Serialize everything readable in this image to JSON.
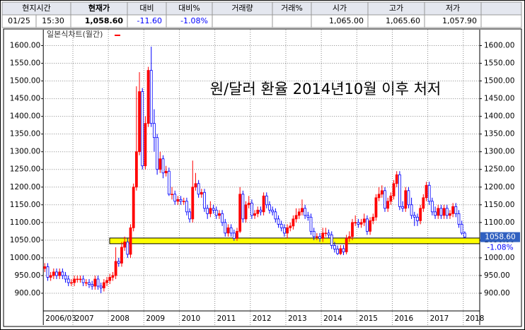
{
  "header": {
    "labels": [
      "현지시간",
      "현재가",
      "대비",
      "대비%",
      "거래량",
      "거래%",
      "시가",
      "고가",
      "저가"
    ],
    "time": [
      "01/25",
      "15:30"
    ],
    "values": [
      "1,058.60",
      "-11.60",
      "-1.08%",
      null,
      null,
      "1,065.00",
      "1,065.60",
      "1,057.90"
    ]
  },
  "chart_data": {
    "type": "candlestick",
    "title": "원/달러 환율 2014년10월 이후 처저",
    "legend": "일본식차트(월간)",
    "last_label": "1058.60",
    "last_change": "-1.08%",
    "up_color": "#ff0000",
    "down_color": "#0000ff",
    "grid": true,
    "categories": [
      "2006/03",
      null,
      null,
      null,
      null,
      null,
      null,
      null,
      null,
      null,
      "2007",
      null,
      null,
      null,
      null,
      null,
      null,
      null,
      null,
      null,
      null,
      null,
      "2008",
      null,
      null,
      null,
      null,
      null,
      null,
      null,
      null,
      null,
      null,
      null,
      "2009",
      null,
      null,
      null,
      null,
      null,
      null,
      null,
      null,
      null,
      null,
      null,
      "2010",
      null,
      null,
      null,
      null,
      null,
      null,
      null,
      null,
      null,
      null,
      null,
      "2011",
      null,
      null,
      null,
      null,
      null,
      null,
      null,
      null,
      null,
      null,
      null,
      "2012",
      null,
      null,
      null,
      null,
      null,
      null,
      null,
      null,
      null,
      null,
      null,
      "2013",
      null,
      null,
      null,
      null,
      null,
      null,
      null,
      null,
      null,
      null,
      null,
      "2014",
      null,
      null,
      null,
      null,
      null,
      null,
      null,
      null,
      null,
      null,
      null,
      "2015",
      null,
      null,
      null,
      null,
      null,
      null,
      null,
      null,
      null,
      null,
      null,
      "2016",
      null,
      null,
      null,
      null,
      null,
      null,
      null,
      null,
      null,
      null,
      null,
      "2017",
      null,
      null,
      null,
      null,
      null,
      null,
      null,
      null,
      null,
      null,
      null,
      "2018"
    ],
    "open": [
      970,
      975,
      945,
      950,
      960,
      950,
      960,
      950,
      940,
      930,
      930,
      940,
      940,
      940,
      930,
      930,
      925,
      920,
      940,
      920,
      915,
      930,
      936,
      945,
      950,
      990,
      985,
      1030,
      1045,
      1010,
      1085,
      1200,
      1300,
      1470,
      1260,
      1380,
      1530,
      1380,
      1340,
      1250,
      1280,
      1240,
      1245,
      1180,
      1180,
      1160,
      1165,
      1160,
      1160,
      1130,
      1110,
      1200,
      1210,
      1180,
      1185,
      1140,
      1125,
      1140,
      1135,
      1120,
      1125,
      1100,
      1070,
      1085,
      1070,
      1055,
      1075,
      1180,
      1110,
      1150,
      1155,
      1120,
      1125,
      1135,
      1130,
      1175,
      1150,
      1135,
      1130,
      1110,
      1095,
      1085,
      1070,
      1085,
      1090,
      1110,
      1120,
      1130,
      1140,
      1120,
      1115,
      1075,
      1060,
      1060,
      1055,
      1070,
      1070,
      1065,
      1035,
      1025,
      1012,
      1026,
      1017,
      1055,
      1060,
      1100,
      1100,
      1095,
      1100,
      1110,
      1075,
      1105,
      1115,
      1170,
      1180,
      1190,
      1140,
      1160,
      1175,
      1210,
      1235,
      1145,
      1140,
      1190,
      1150,
      1120,
      1115,
      1105,
      1140,
      1170,
      1205,
      1160,
      1130,
      1120,
      1140,
      1120,
      1140,
      1120,
      1125,
      1145,
      1125,
      1095,
      1070
    ],
    "high": [
      985,
      985,
      960,
      970,
      970,
      970,
      970,
      960,
      950,
      940,
      950,
      950,
      950,
      950,
      940,
      940,
      935,
      950,
      950,
      930,
      940,
      946,
      955,
      960,
      1030,
      1000,
      1045,
      1060,
      1055,
      1095,
      1210,
      1485,
      1525,
      1480,
      1400,
      1540,
      1597,
      1420,
      1350,
      1300,
      1290,
      1260,
      1255,
      1200,
      1190,
      1175,
      1175,
      1170,
      1170,
      1140,
      1275,
      1240,
      1220,
      1195,
      1195,
      1150,
      1160,
      1150,
      1145,
      1135,
      1135,
      1110,
      1095,
      1095,
      1080,
      1085,
      1200,
      1190,
      1160,
      1175,
      1165,
      1135,
      1145,
      1145,
      1185,
      1185,
      1160,
      1145,
      1140,
      1120,
      1105,
      1095,
      1095,
      1100,
      1120,
      1140,
      1140,
      1165,
      1150,
      1130,
      1125,
      1085,
      1070,
      1070,
      1085,
      1085,
      1080,
      1075,
      1045,
      1035,
      1036,
      1036,
      1065,
      1075,
      1110,
      1120,
      1110,
      1110,
      1125,
      1120,
      1115,
      1125,
      1180,
      1200,
      1205,
      1200,
      1170,
      1185,
      1220,
      1245,
      1245,
      1160,
      1200,
      1200,
      1170,
      1130,
      1125,
      1150,
      1180,
      1215,
      1215,
      1170,
      1145,
      1150,
      1150,
      1150,
      1150,
      1135,
      1155,
      1155,
      1135,
      1105,
      1075
    ],
    "low": [
      960,
      935,
      935,
      940,
      940,
      940,
      940,
      930,
      920,
      920,
      920,
      930,
      930,
      920,
      920,
      915,
      910,
      910,
      910,
      900,
      905,
      920,
      926,
      935,
      940,
      975,
      975,
      1020,
      1000,
      1000,
      1075,
      1190,
      1290,
      1250,
      1250,
      1370,
      1370,
      1300,
      1235,
      1240,
      1225,
      1230,
      1175,
      1165,
      1150,
      1150,
      1150,
      1150,
      1120,
      1100,
      1100,
      1190,
      1170,
      1170,
      1130,
      1110,
      1115,
      1125,
      1110,
      1110,
      1090,
      1060,
      1060,
      1060,
      1048,
      1048,
      1070,
      1100,
      1100,
      1140,
      1110,
      1110,
      1115,
      1120,
      1120,
      1140,
      1125,
      1120,
      1100,
      1085,
      1075,
      1060,
      1055,
      1075,
      1080,
      1100,
      1110,
      1120,
      1110,
      1105,
      1065,
      1050,
      1050,
      1045,
      1045,
      1060,
      1055,
      1025,
      1015,
      1008,
      1008,
      1008,
      1010,
      1045,
      1050,
      1090,
      1085,
      1085,
      1090,
      1065,
      1065,
      1095,
      1105,
      1160,
      1170,
      1130,
      1130,
      1150,
      1165,
      1200,
      1135,
      1130,
      1130,
      1140,
      1110,
      1090,
      1090,
      1095,
      1130,
      1160,
      1150,
      1120,
      1110,
      1110,
      1110,
      1110,
      1110,
      1110,
      1115,
      1115,
      1085,
      1065,
      1055
    ],
    "close": [
      975,
      945,
      950,
      960,
      950,
      960,
      950,
      940,
      930,
      930,
      940,
      940,
      940,
      930,
      930,
      925,
      920,
      940,
      920,
      915,
      930,
      936,
      945,
      950,
      990,
      985,
      1030,
      1045,
      1010,
      1085,
      1200,
      1300,
      1470,
      1260,
      1380,
      1530,
      1380,
      1340,
      1250,
      1280,
      1240,
      1245,
      1180,
      1180,
      1160,
      1165,
      1160,
      1160,
      1130,
      1110,
      1200,
      1210,
      1180,
      1185,
      1140,
      1125,
      1140,
      1135,
      1120,
      1125,
      1100,
      1070,
      1085,
      1070,
      1055,
      1075,
      1180,
      1110,
      1150,
      1155,
      1120,
      1125,
      1135,
      1130,
      1175,
      1150,
      1135,
      1130,
      1110,
      1095,
      1085,
      1070,
      1085,
      1090,
      1110,
      1120,
      1130,
      1140,
      1120,
      1115,
      1075,
      1060,
      1060,
      1055,
      1070,
      1070,
      1065,
      1035,
      1025,
      1012,
      1026,
      1017,
      1055,
      1060,
      1100,
      1100,
      1095,
      1100,
      1110,
      1075,
      1105,
      1115,
      1170,
      1180,
      1190,
      1140,
      1160,
      1175,
      1210,
      1235,
      1145,
      1140,
      1190,
      1150,
      1120,
      1115,
      1105,
      1140,
      1170,
      1205,
      1160,
      1130,
      1120,
      1140,
      1120,
      1140,
      1120,
      1125,
      1145,
      1125,
      1095,
      1070,
      1058.6
    ],
    "ylim": [
      850,
      1645
    ],
    "yticks": [
      {
        "value": 900,
        "label": "900.00"
      },
      {
        "value": 950,
        "label": "950.00"
      },
      {
        "value": 1000,
        "label": "1000.00"
      },
      {
        "value": 1050,
        "label": "1050.00"
      },
      {
        "value": 1100,
        "label": "1100.00"
      },
      {
        "value": 1150,
        "label": "1150.00"
      },
      {
        "value": 1200,
        "label": "1200.00"
      },
      {
        "value": 1250,
        "label": "1250.00"
      },
      {
        "value": 1300,
        "label": "1300.00"
      },
      {
        "value": 1350,
        "label": "1350.00"
      },
      {
        "value": 1400,
        "label": "1400.00"
      },
      {
        "value": 1450,
        "label": "1450.00"
      },
      {
        "value": 1500,
        "label": "1500.00"
      },
      {
        "value": 1550,
        "label": "1550.00"
      },
      {
        "value": 1600,
        "label": "1600.00"
      }
    ],
    "highlight": {
      "ylim": [
        1040,
        1056
      ],
      "color": "#ffff00"
    }
  }
}
